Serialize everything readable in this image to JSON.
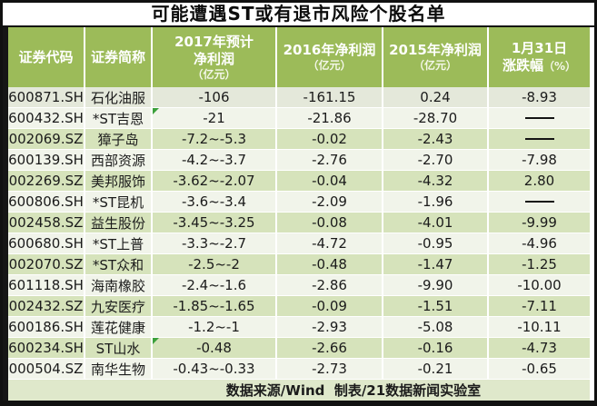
{
  "title": "可能遭遇ST或有退市风险个股名单",
  "colors": {
    "header_green": "#9cbb59",
    "row_green": "#d6e3bb",
    "row_light": "#f1f4ea",
    "row_first": "#e4e8da",
    "footer_green": "#dfe8cb",
    "flag_green": "#3ba03b",
    "title_color": "#0d0d0d",
    "border_black": "#111111"
  },
  "header": {
    "cells": [
      {
        "l1": "证券代码"
      },
      {
        "l1": "证券简称"
      },
      {
        "l1": "2017年预计",
        "l2": "净利润",
        "unit": "（亿元）"
      },
      {
        "l1": "2016年净利润",
        "unit": "（亿元）"
      },
      {
        "l1": "2015年净利润",
        "unit": "（亿元）"
      },
      {
        "l1": "1月31日",
        "l2": "涨跌幅",
        "unit_inline": "（%）"
      }
    ]
  },
  "chart_data": {
    "type": "table",
    "title": "可能遭遇ST或有退市风险个股名单",
    "columns": [
      "证券代码",
      "证券简称",
      "2017年预计净利润（亿元）",
      "2016年净利润（亿元）",
      "2015年净利润（亿元）",
      "1月31日涨跌幅（%）"
    ],
    "dash_placeholder": "——",
    "flag_marker_rows": [
      1,
      12
    ],
    "rows": [
      [
        "600871.SH",
        "石化油服",
        "-106",
        "-161.15",
        "0.24",
        "-8.93"
      ],
      [
        "600432.SH",
        "*ST吉恩",
        "-21",
        "-21.86",
        "-28.70",
        "——"
      ],
      [
        "002069.SZ",
        "獐子岛",
        "-7.2~-5.3",
        "-0.02",
        "-2.43",
        "——"
      ],
      [
        "600139.SH",
        "西部资源",
        "-4.2~-3.7",
        "-2.76",
        "-2.70",
        "-7.98"
      ],
      [
        "002269.SZ",
        "美邦服饰",
        "-3.62~-2.07",
        "-0.04",
        "-4.32",
        "2.80"
      ],
      [
        "600806.SH",
        "*ST昆机",
        "-3.6~-3.4",
        "-2.09",
        "-1.96",
        "——"
      ],
      [
        "002458.SZ",
        "益生股份",
        "-3.45~-3.25",
        "-0.08",
        "-4.01",
        "-9.99"
      ],
      [
        "600680.SH",
        "*ST上普",
        "-3.3~-2.7",
        "-4.72",
        "-0.95",
        "-4.96"
      ],
      [
        "002070.SZ",
        "*ST众和",
        "-2.5~-2",
        "-0.48",
        "-1.47",
        "-1.25"
      ],
      [
        "601118.SH",
        "海南橡胶",
        "-2.4~-1.6",
        "-2.86",
        "-9.90",
        "-10.00"
      ],
      [
        "002432.SZ",
        "九安医疗",
        "-1.85~-1.65",
        "-0.09",
        "-1.51",
        "-7.11"
      ],
      [
        "600186.SH",
        "莲花健康",
        "-1.2~-1",
        "-2.93",
        "-5.08",
        "-10.11"
      ],
      [
        "600234.SH",
        "ST山水",
        "-0.48",
        "-2.66",
        "-0.16",
        "-4.73"
      ],
      [
        "000504.SZ",
        "南华生物",
        "-0.43~-0.33",
        "-2.73",
        "-0.21",
        "-0.65"
      ]
    ],
    "footer": "数据来源/Wind  制表/21数据新闻实验室"
  }
}
